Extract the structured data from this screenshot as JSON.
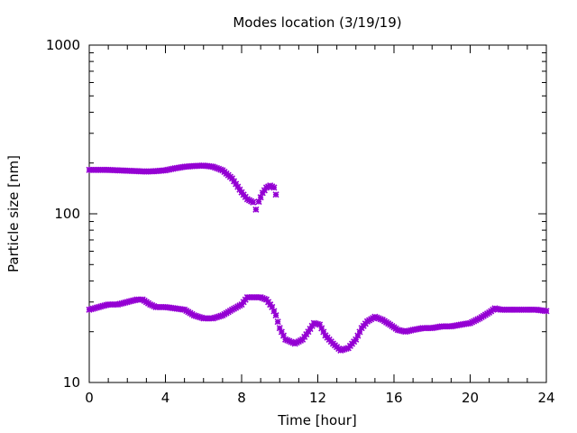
{
  "chart_data": {
    "type": "scatter",
    "title": "Modes location (3/19/19)",
    "xlabel": "Time [hour]",
    "ylabel": "Particle size [nm]",
    "xlim": [
      0,
      24
    ],
    "ylim": [
      10,
      1000
    ],
    "yscale": "log",
    "xticks": [
      "0",
      "4",
      "8",
      "12",
      "16",
      "20",
      "24"
    ],
    "yticks": [
      "10",
      "100",
      "1000"
    ],
    "grid": false,
    "legend": "none",
    "marker_color": "#9400d3",
    "series": [
      {
        "points": [
          [
            0,
            182
          ],
          [
            0.5,
            182
          ],
          [
            1,
            182
          ],
          [
            1.5,
            181
          ],
          [
            2,
            180
          ],
          [
            2.5,
            179
          ],
          [
            3,
            178
          ],
          [
            3.5,
            179
          ],
          [
            4,
            181
          ],
          [
            4.5,
            186
          ],
          [
            5,
            190
          ],
          [
            5.5,
            192
          ],
          [
            6,
            193
          ],
          [
            6.5,
            190
          ],
          [
            7,
            181
          ],
          [
            7.5,
            162
          ],
          [
            8,
            134
          ],
          [
            8.3,
            122
          ],
          [
            8.6,
            117
          ],
          [
            8.75,
            106
          ],
          [
            8.9,
            118
          ],
          [
            9.1,
            133
          ],
          [
            9.3,
            143
          ],
          [
            9.5,
            147
          ],
          [
            9.7,
            143
          ],
          [
            9.8,
            130
          ]
        ]
      },
      {
        "points": [
          [
            0,
            27
          ],
          [
            0.5,
            28
          ],
          [
            1,
            29
          ],
          [
            1.5,
            29
          ],
          [
            2,
            30
          ],
          [
            2.5,
            31
          ],
          [
            2.8,
            31
          ],
          [
            3.2,
            29
          ],
          [
            3.5,
            28
          ],
          [
            4,
            28
          ],
          [
            4.5,
            27.5
          ],
          [
            5,
            27
          ],
          [
            5.5,
            25
          ],
          [
            6,
            24
          ],
          [
            6.5,
            24
          ],
          [
            7,
            25
          ],
          [
            7.5,
            27
          ],
          [
            8,
            29
          ],
          [
            8.3,
            32
          ],
          [
            8.6,
            32
          ],
          [
            9,
            32
          ],
          [
            9.3,
            31
          ],
          [
            9.6,
            28
          ],
          [
            9.8,
            25
          ],
          [
            10,
            21
          ],
          [
            10.3,
            18
          ],
          [
            10.8,
            17
          ],
          [
            11.2,
            18
          ],
          [
            11.5,
            20
          ],
          [
            11.8,
            22.5
          ],
          [
            12.1,
            22
          ],
          [
            12.4,
            19
          ],
          [
            12.8,
            17
          ],
          [
            13.2,
            15.5
          ],
          [
            13.6,
            16
          ],
          [
            14,
            18
          ],
          [
            14.3,
            21
          ],
          [
            14.6,
            23
          ],
          [
            15,
            24.5
          ],
          [
            15.4,
            23.5
          ],
          [
            15.8,
            22
          ],
          [
            16.2,
            20.5
          ],
          [
            16.6,
            20
          ],
          [
            17,
            20.5
          ],
          [
            17.5,
            21
          ],
          [
            18,
            21
          ],
          [
            18.5,
            21.5
          ],
          [
            19,
            21.5
          ],
          [
            19.5,
            22
          ],
          [
            20,
            22.5
          ],
          [
            20.5,
            24
          ],
          [
            21,
            26
          ],
          [
            21.3,
            27.5
          ],
          [
            21.6,
            27
          ],
          [
            22,
            27
          ],
          [
            22.5,
            27
          ],
          [
            23,
            27
          ],
          [
            23.5,
            27
          ],
          [
            24,
            26.5
          ]
        ]
      }
    ]
  }
}
